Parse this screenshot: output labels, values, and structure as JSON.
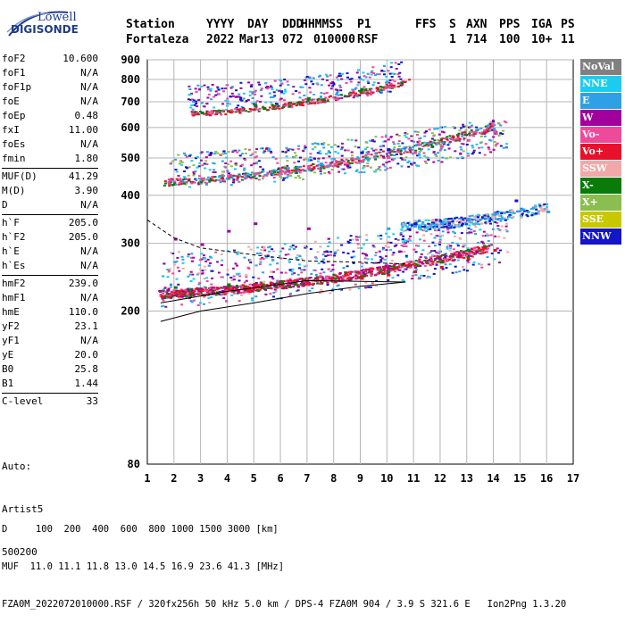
{
  "logo": {
    "line1": "Lowell",
    "line2": "DIGISONDE"
  },
  "header": {
    "labels": [
      "Station",
      "YYYY",
      "DAY",
      "DDD",
      "HHMMSS",
      "P1",
      "FFS",
      "S",
      "AXN",
      "PPS",
      "IGA",
      "PS"
    ],
    "values": [
      "Fortaleza",
      "2022",
      "Mar13",
      "072",
      "010000",
      "RSF",
      "",
      "1",
      "714",
      "100",
      "10+",
      "11"
    ]
  },
  "params": {
    "groups": [
      [
        {
          "label": "foF2",
          "value": "10.600"
        },
        {
          "label": "foF1",
          "value": "N/A"
        },
        {
          "label": "foF1p",
          "value": "N/A"
        },
        {
          "label": "foE",
          "value": "N/A"
        },
        {
          "label": "foEp",
          "value": "0.48"
        },
        {
          "label": "fxI",
          "value": "11.00"
        },
        {
          "label": "foEs",
          "value": "N/A"
        },
        {
          "label": "fmin",
          "value": "1.80"
        }
      ],
      [
        {
          "label": "MUF(D)",
          "value": "41.29"
        },
        {
          "label": "M(D)",
          "value": "3.90"
        },
        {
          "label": "D",
          "value": "N/A"
        }
      ],
      [
        {
          "label": "h`F",
          "value": "205.0"
        },
        {
          "label": "h`F2",
          "value": "205.0"
        },
        {
          "label": "h`E",
          "value": "N/A"
        },
        {
          "label": "h`Es",
          "value": "N/A"
        }
      ],
      [
        {
          "label": "hmF2",
          "value": "239.0"
        },
        {
          "label": "hmF1",
          "value": "N/A"
        },
        {
          "label": "hmE",
          "value": "110.0"
        },
        {
          "label": "yF2",
          "value": "23.1"
        },
        {
          "label": "yF1",
          "value": "N/A"
        },
        {
          "label": "yE",
          "value": "20.0"
        },
        {
          "label": "B0",
          "value": "25.8"
        },
        {
          "label": "B1",
          "value": "1.44"
        }
      ],
      [
        {
          "label": "C-level",
          "value": "33"
        }
      ]
    ]
  },
  "auto": {
    "line1": "Auto:",
    "line2": "Artist5",
    "line3": "500200"
  },
  "legend": [
    {
      "label": "NoVal",
      "color": "#808080"
    },
    {
      "label": "NNE",
      "color": "#1ecbf0"
    },
    {
      "label": "E",
      "color": "#2ea0e8"
    },
    {
      "label": "W",
      "color": "#a0009c"
    },
    {
      "label": "Vo-",
      "color": "#ee4a9a"
    },
    {
      "label": "Vo+",
      "color": "#e8102a"
    },
    {
      "label": "SSW",
      "color": "#f2a8a8"
    },
    {
      "label": "X-",
      "color": "#0a7a0a"
    },
    {
      "label": "X+",
      "color": "#8abe50"
    },
    {
      "label": "SSE",
      "color": "#c8c800"
    },
    {
      "label": "NNW",
      "color": "#1414c8"
    }
  ],
  "footer": {
    "line1": "D     100  200  400  600  800 1000 1500 3000 [km]",
    "line2": "MUF  11.0 11.1 11.8 13.0 14.5 16.9 23.6 41.3 [MHz]",
    "line3": "FZA0M_2022072010000.RSF / 320fx256h 50 kHz 5.0 km / DPS-4 FZA0M 904 / 3.9 S 321.6 E   Ion2Png 1.3.20"
  },
  "chart_data": {
    "type": "scatter",
    "title": "",
    "xlabel": "",
    "ylabel": "",
    "x_ticks": [
      "1",
      "2",
      "3",
      "4",
      "5",
      "6",
      "7",
      "8",
      "9",
      "10",
      "11",
      "12",
      "13",
      "14",
      "15",
      "16",
      "17"
    ],
    "y_ticks": [
      "200",
      "300",
      "400",
      "500",
      "600",
      "700",
      "800",
      "900"
    ],
    "y_axis_bottom_label": "80",
    "xlim": [
      1,
      17
    ],
    "ylim": [
      80,
      900
    ],
    "y_scale": "log",
    "grid": true,
    "legend_position": "right",
    "series": [
      {
        "name": "Vo+",
        "color": "#e8102a",
        "points": [
          [
            1.5,
            220
          ],
          [
            2,
            225
          ],
          [
            3,
            228
          ],
          [
            4,
            230
          ],
          [
            5,
            232
          ],
          [
            6,
            235
          ],
          [
            7,
            238
          ],
          [
            8,
            240
          ],
          [
            9,
            245
          ],
          [
            10,
            250
          ],
          [
            11,
            255
          ],
          [
            12,
            262
          ],
          [
            13,
            275
          ],
          [
            14,
            290
          ]
        ]
      },
      {
        "name": "Vo-",
        "color": "#ee4a9a",
        "points": [
          [
            1.8,
            440
          ],
          [
            3,
            445
          ],
          [
            4,
            452
          ],
          [
            5,
            458
          ],
          [
            6,
            465
          ],
          [
            7,
            475
          ],
          [
            8,
            485
          ],
          [
            9,
            495
          ],
          [
            10,
            505
          ],
          [
            11,
            520
          ],
          [
            12,
            540
          ],
          [
            13,
            560
          ],
          [
            14,
            590
          ]
        ]
      },
      {
        "name": "X-",
        "color": "#0a7a0a",
        "points": [
          [
            2,
            232
          ],
          [
            4,
            236
          ],
          [
            6,
            240
          ],
          [
            8,
            245
          ],
          [
            10,
            255
          ],
          [
            12,
            270
          ],
          [
            13,
            290
          ],
          [
            3,
            660
          ],
          [
            5,
            690
          ],
          [
            7,
            720
          ],
          [
            9,
            760
          ],
          [
            10.5,
            790
          ]
        ]
      },
      {
        "name": "E",
        "color": "#2ea0e8",
        "points": [
          [
            10,
            330
          ],
          [
            11,
            335
          ],
          [
            12,
            340
          ],
          [
            13,
            350
          ],
          [
            14,
            360
          ],
          [
            15,
            370
          ],
          [
            16,
            365
          ]
        ]
      },
      {
        "name": "W",
        "color": "#a0009c",
        "points": [
          [
            2,
            310
          ],
          [
            3,
            300
          ],
          [
            4,
            325
          ],
          [
            5,
            340
          ],
          [
            7,
            330
          ]
        ]
      },
      {
        "name": "NNW",
        "color": "#1414c8",
        "points": [
          [
            9,
            520
          ],
          [
            10,
            530
          ],
          [
            11,
            340
          ],
          [
            14.8,
            390
          ]
        ]
      }
    ]
  }
}
